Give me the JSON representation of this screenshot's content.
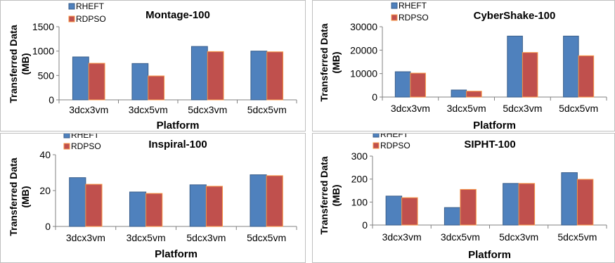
{
  "colors": {
    "rheft": "#4f81bd",
    "rheft_edge": "#385d8a",
    "rdpso": "#c0504d",
    "rdpso_edge": "#f79646",
    "axis": "#808080",
    "text": "#000000"
  },
  "chart_data": [
    {
      "type": "bar",
      "title": "Montage-100",
      "xlabel": "Platform",
      "ylabel": "Transferred Data (MB)",
      "ylabel_lines": [
        "Transferred Data",
        "(MB)"
      ],
      "categories": [
        "3dcx3vm",
        "3dcx5vm",
        "5dcx3vm",
        "5dcx5vm"
      ],
      "ylim": [
        0,
        1500
      ],
      "yticks": [
        0,
        500,
        1000,
        1500
      ],
      "ytick_labels": [
        "0",
        "500",
        "1000",
        "1500"
      ],
      "series": [
        {
          "name": "RHEFT",
          "values": [
            880,
            745,
            1095,
            1000
          ]
        },
        {
          "name": "RDPSO",
          "values": [
            750,
            490,
            990,
            985
          ]
        }
      ],
      "grid": false,
      "legend_position": "top-left"
    },
    {
      "type": "bar",
      "title": "CyberShake-100",
      "xlabel": "Platform",
      "ylabel": "Transferred Data (MB)",
      "ylabel_lines": [
        "Transferred Data",
        "(MB)"
      ],
      "categories": [
        "3dcx3vm",
        "3dcx5vm",
        "5dcx3vm",
        "5dcx5vm"
      ],
      "ylim": [
        0,
        30000
      ],
      "yticks": [
        0,
        10000,
        20000,
        30000
      ],
      "ytick_labels": [
        "0",
        "10000",
        "20000",
        "30000"
      ],
      "series": [
        {
          "name": "RHEFT",
          "values": [
            10800,
            3000,
            26000,
            26000
          ]
        },
        {
          "name": "RDPSO",
          "values": [
            10200,
            2500,
            19000,
            17600
          ]
        }
      ],
      "grid": false,
      "legend_position": "top-left"
    },
    {
      "type": "bar",
      "title": "Inspiral-100",
      "xlabel": "Platform",
      "ylabel": "Transferred Data (MB)",
      "ylabel_lines": [
        "Transferred Data",
        "(MB)"
      ],
      "categories": [
        "3dcx3vm",
        "3dcx5vm",
        "5dcx3vm",
        "5dcx5vm"
      ],
      "ylim": [
        0,
        40
      ],
      "yticks": [
        0,
        20,
        40
      ],
      "ytick_labels": [
        "0",
        "20",
        "40"
      ],
      "series": [
        {
          "name": "RHEFT",
          "values": [
            27.2,
            19.2,
            23.2,
            28.8
          ]
        },
        {
          "name": "RDPSO",
          "values": [
            23.5,
            18.4,
            22.4,
            28.3
          ]
        }
      ],
      "grid": false,
      "legend_position": "top-left"
    },
    {
      "type": "bar",
      "title": "SIPHT-100",
      "xlabel": "Platform",
      "ylabel": "Transferred Data (MB)",
      "ylabel_lines": [
        "Transferred Data",
        "(MB)"
      ],
      "categories": [
        "3dcx3vm",
        "3dcx5vm",
        "5dcx3vm",
        "5dcx5vm"
      ],
      "ylim": [
        0,
        300
      ],
      "yticks": [
        0,
        100,
        200,
        300
      ],
      "ytick_labels": [
        "0",
        "100",
        "200",
        "300"
      ],
      "series": [
        {
          "name": "RHEFT",
          "values": [
            126,
            76,
            181,
            228
          ]
        },
        {
          "name": "RDPSO",
          "values": [
            119,
            155,
            181,
            199
          ]
        }
      ],
      "grid": false,
      "legend_position": "top-left"
    }
  ]
}
